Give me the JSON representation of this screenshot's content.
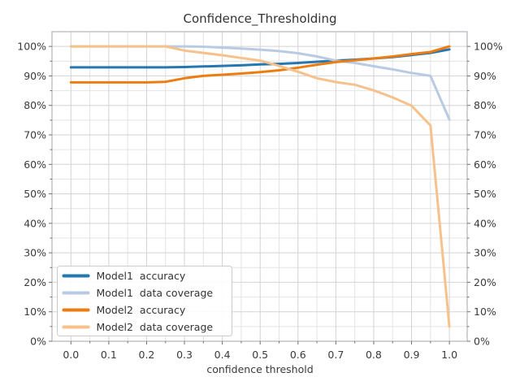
{
  "figure": {
    "title": "Confidence_Thresholding",
    "xlabel": "confidence threshold"
  },
  "chart_data": {
    "type": "line",
    "title": "Confidence_Thresholding",
    "xlabel": "confidence threshold",
    "ylabel": "",
    "x": [
      0.0,
      0.05,
      0.1,
      0.15,
      0.2,
      0.25,
      0.3,
      0.35,
      0.4,
      0.45,
      0.5,
      0.55,
      0.6,
      0.65,
      0.7,
      0.75,
      0.8,
      0.85,
      0.9,
      0.95,
      1.0
    ],
    "series": [
      {
        "name": "Model1  accuracy",
        "color": "#2577b2",
        "values": [
          92.9,
          92.9,
          92.9,
          92.9,
          92.9,
          92.9,
          93.0,
          93.2,
          93.4,
          93.6,
          93.9,
          94.1,
          94.4,
          94.8,
          95.2,
          95.5,
          95.9,
          96.4,
          97.1,
          97.8,
          99.0
        ]
      },
      {
        "name": "Model1  data coverage",
        "color": "#b9cbe2",
        "values": [
          100,
          100,
          100,
          100,
          100,
          100,
          100,
          99.9,
          99.6,
          99.3,
          98.9,
          98.4,
          97.7,
          96.6,
          95.2,
          94.4,
          93.3,
          92.2,
          91.0,
          90.0,
          75.2
        ]
      },
      {
        "name": "Model2  accuracy",
        "color": "#ed7d11",
        "values": [
          87.8,
          87.8,
          87.8,
          87.8,
          87.8,
          88.0,
          89.2,
          90.0,
          90.4,
          90.8,
          91.3,
          91.9,
          92.8,
          93.8,
          94.7,
          95.3,
          95.9,
          96.6,
          97.4,
          98.1,
          100.0
        ]
      },
      {
        "name": "Model2  data coverage",
        "color": "#f7c18c",
        "values": [
          100,
          100,
          100,
          100,
          100,
          100,
          98.6,
          97.8,
          97.0,
          96.1,
          95.2,
          93.4,
          91.4,
          89.2,
          87.9,
          87.0,
          85.1,
          82.7,
          79.9,
          73.2,
          5.0
        ]
      }
    ],
    "xlim": [
      -0.05,
      1.047
    ],
    "ylim": [
      0,
      105
    ],
    "xticks_major": [
      0.0,
      0.1,
      0.2,
      0.3,
      0.4,
      0.5,
      0.6,
      0.7,
      0.8,
      0.9,
      1.0
    ],
    "xtick_labels": [
      "0.0",
      "0.1",
      "0.2",
      "0.3",
      "0.4",
      "0.5",
      "0.6",
      "0.7",
      "0.8",
      "0.9",
      "1.0"
    ],
    "xticks_minor": [
      0.05,
      0.15,
      0.25,
      0.35,
      0.45,
      0.55,
      0.65,
      0.75,
      0.85,
      0.95
    ],
    "yticks_major": [
      0,
      10,
      20,
      30,
      40,
      50,
      60,
      70,
      80,
      90,
      100
    ],
    "ytick_labels": [
      "0%",
      "10%",
      "20%",
      "30%",
      "40%",
      "50%",
      "60%",
      "70%",
      "80%",
      "90%",
      "100%"
    ],
    "yticks_minor": [
      5,
      15,
      25,
      35,
      45,
      55,
      65,
      75,
      85,
      95
    ],
    "grid": "major+minor",
    "legend_position": "lower-left",
    "legend_entries": [
      "Model1  accuracy",
      "Model1  data coverage",
      "Model2  accuracy",
      "Model2  data coverage"
    ]
  },
  "colors": {
    "grid_major": "#d3d3d3",
    "grid_minor": "#e4e4e4",
    "spine": "#b0b4ba",
    "tick": "#707070",
    "legend_border": "#cccccc",
    "legend_bg": "#ffffff",
    "background": "#ffffff"
  }
}
